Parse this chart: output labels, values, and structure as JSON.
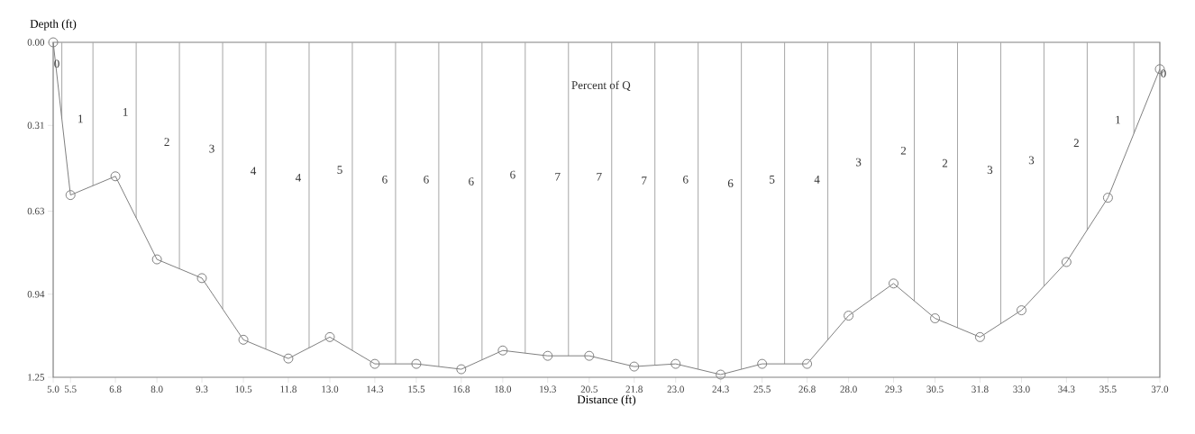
{
  "chart_data": {
    "type": "line",
    "xlabel": "Distance (ft)",
    "ylabel": "Depth (ft)",
    "x": [
      5.0,
      5.5,
      6.8,
      8.0,
      9.3,
      10.5,
      11.8,
      13.0,
      14.3,
      15.5,
      16.8,
      18.0,
      19.3,
      20.5,
      21.8,
      23.0,
      24.3,
      25.5,
      26.8,
      28.0,
      29.3,
      30.5,
      31.8,
      33.0,
      34.3,
      35.5,
      37.0
    ],
    "series": [
      {
        "color": "#808080",
        "values": [
          0.0,
          0.57,
          0.5,
          0.81,
          0.88,
          1.11,
          1.18,
          1.1,
          1.2,
          1.2,
          1.22,
          1.15,
          1.17,
          1.17,
          1.21,
          1.2,
          1.24,
          1.2,
          1.2,
          1.02,
          0.9,
          1.03,
          1.1,
          1.0,
          0.82,
          0.58,
          0.1
        ]
      }
    ],
    "marker": "circle",
    "line_style": "solid",
    "grid": false,
    "xlim": [
      5.0,
      37.0
    ],
    "ylim": [
      1.25,
      0.0
    ],
    "xticks": [
      {
        "value": 5.0,
        "label": "5.0"
      },
      {
        "value": 5.5,
        "label": "5.5"
      },
      {
        "value": 6.8,
        "label": "6.8"
      },
      {
        "value": 8.0,
        "label": "8.0"
      },
      {
        "value": 9.3,
        "label": "9.3"
      },
      {
        "value": 10.5,
        "label": "10.5"
      },
      {
        "value": 11.8,
        "label": "11.8"
      },
      {
        "value": 13.0,
        "label": "13.0"
      },
      {
        "value": 14.3,
        "label": "14.3"
      },
      {
        "value": 15.5,
        "label": "15.5"
      },
      {
        "value": 16.8,
        "label": "16.8"
      },
      {
        "value": 18.0,
        "label": "18.0"
      },
      {
        "value": 19.3,
        "label": "19.3"
      },
      {
        "value": 20.5,
        "label": "20.5"
      },
      {
        "value": 21.8,
        "label": "21.8"
      },
      {
        "value": 23.0,
        "label": "23.0"
      },
      {
        "value": 24.3,
        "label": "24.3"
      },
      {
        "value": 25.5,
        "label": "25.5"
      },
      {
        "value": 26.8,
        "label": "26.8"
      },
      {
        "value": 28.0,
        "label": "28.0"
      },
      {
        "value": 29.3,
        "label": "29.3"
      },
      {
        "value": 30.5,
        "label": "30.5"
      },
      {
        "value": 31.8,
        "label": "31.8"
      },
      {
        "value": 33.0,
        "label": "33.0"
      },
      {
        "value": 34.3,
        "label": "34.3"
      },
      {
        "value": 35.5,
        "label": "35.5"
      },
      {
        "value": 37.0,
        "label": "37.0"
      }
    ],
    "yticks": [
      {
        "value": 0.0,
        "label": "0.00"
      },
      {
        "value": 0.31,
        "label": "0.31"
      },
      {
        "value": 0.63,
        "label": "0.63"
      },
      {
        "value": 0.94,
        "label": "0.94"
      },
      {
        "value": 1.25,
        "label": "1.25"
      }
    ],
    "ref_lines": [
      {
        "axis": "x",
        "value": 5.25
      },
      {
        "axis": "x",
        "value": 6.15
      },
      {
        "axis": "x",
        "value": 7.4
      },
      {
        "axis": "x",
        "value": 8.65
      },
      {
        "axis": "x",
        "value": 9.9
      },
      {
        "axis": "x",
        "value": 11.15
      },
      {
        "axis": "x",
        "value": 12.4
      },
      {
        "axis": "x",
        "value": 13.65
      },
      {
        "axis": "x",
        "value": 14.9
      },
      {
        "axis": "x",
        "value": 16.15
      },
      {
        "axis": "x",
        "value": 17.4
      },
      {
        "axis": "x",
        "value": 18.65
      },
      {
        "axis": "x",
        "value": 19.9
      },
      {
        "axis": "x",
        "value": 21.15
      },
      {
        "axis": "x",
        "value": 22.4
      },
      {
        "axis": "x",
        "value": 23.65
      },
      {
        "axis": "x",
        "value": 24.9
      },
      {
        "axis": "x",
        "value": 26.15
      },
      {
        "axis": "x",
        "value": 27.4
      },
      {
        "axis": "x",
        "value": 28.65
      },
      {
        "axis": "x",
        "value": 29.9
      },
      {
        "axis": "x",
        "value": 31.15
      },
      {
        "axis": "x",
        "value": 32.4
      },
      {
        "axis": "x",
        "value": 33.65
      },
      {
        "axis": "x",
        "value": 34.9
      },
      {
        "axis": "x",
        "value": 36.25
      }
    ],
    "annotations": [
      "Percent of Q",
      "0",
      "1",
      "1",
      "2",
      "3",
      "4",
      "4",
      "5",
      "6",
      "6",
      "6",
      "6",
      "7",
      "7",
      "7",
      "6",
      "6",
      "5",
      "4",
      "3",
      "2",
      "2",
      "3",
      "3",
      "2",
      "1",
      "0"
    ]
  }
}
